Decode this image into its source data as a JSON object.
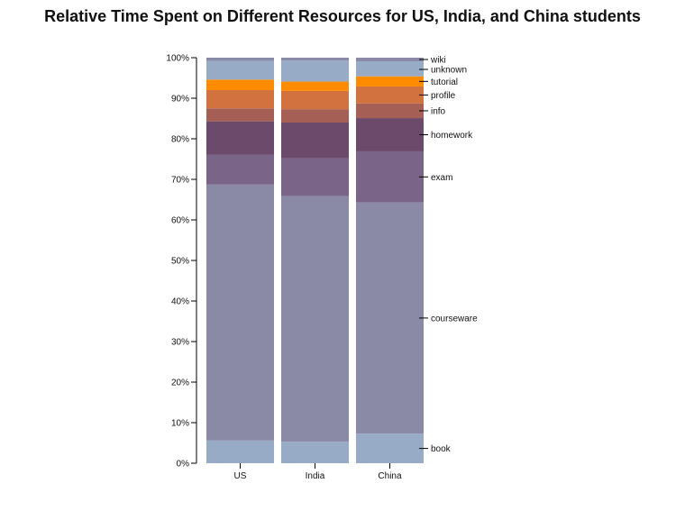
{
  "chart_data": {
    "type": "bar",
    "stacked": true,
    "normalized": true,
    "title": "Relative Time Spent on Different Resources for US, India, and China students",
    "xlabel": "",
    "ylabel": "",
    "ylim": [
      0,
      100
    ],
    "y_ticks": [
      "0%",
      "10%",
      "20%",
      "30%",
      "40%",
      "50%",
      "60%",
      "70%",
      "80%",
      "90%",
      "100%"
    ],
    "grid": false,
    "legend_placement": "right",
    "categories": [
      "US",
      "India",
      "China"
    ],
    "series": [
      {
        "name": "book",
        "color": "#97abc6",
        "values": [
          5.6,
          5.3,
          7.3
        ]
      },
      {
        "name": "courseware",
        "color": "#8a8aa6",
        "values": [
          63.1,
          60.6,
          57.0
        ]
      },
      {
        "name": "exam",
        "color": "#7a6588",
        "values": [
          7.4,
          9.3,
          12.6
        ]
      },
      {
        "name": "homework",
        "color": "#6b4a6c",
        "values": [
          8.2,
          8.8,
          8.2
        ]
      },
      {
        "name": "info",
        "color": "#a65f55",
        "values": [
          3.2,
          3.3,
          3.6
        ]
      },
      {
        "name": "profile",
        "color": "#d2723e",
        "values": [
          4.5,
          4.5,
          4.2
        ]
      },
      {
        "name": "tutorial",
        "color": "#ff8c00",
        "values": [
          2.6,
          2.3,
          2.5
        ]
      },
      {
        "name": "unknown",
        "color": "#97abc6",
        "values": [
          4.6,
          5.2,
          3.7
        ]
      },
      {
        "name": "wiki",
        "color": "#8a8aa6",
        "values": [
          0.8,
          0.7,
          0.9
        ]
      }
    ]
  }
}
